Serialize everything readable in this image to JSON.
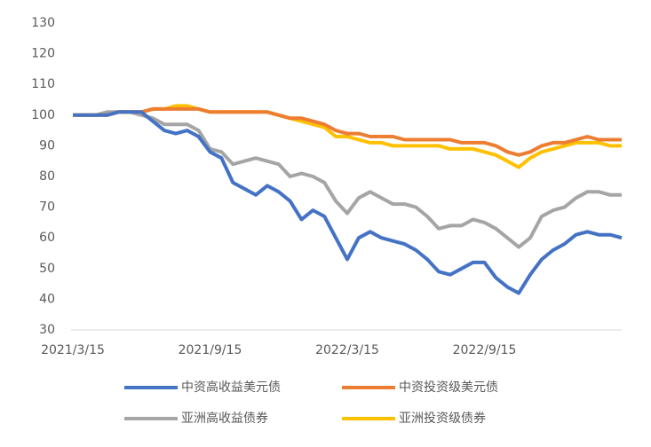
{
  "chart_data": {
    "type": "line",
    "categories": [
      "2021/3/15",
      null,
      null,
      null,
      null,
      null,
      null,
      null,
      null,
      null,
      null,
      null,
      "2021/9/15",
      null,
      null,
      null,
      null,
      null,
      null,
      null,
      null,
      null,
      null,
      null,
      "2022/3/15",
      null,
      null,
      null,
      null,
      null,
      null,
      null,
      null,
      null,
      null,
      null,
      "2022/9/15",
      null,
      null,
      null,
      null,
      null,
      null,
      null,
      null,
      null,
      null,
      null,
      null
    ],
    "ylim": [
      30,
      130
    ],
    "yticks": [
      30,
      40,
      50,
      60,
      70,
      80,
      90,
      100,
      110,
      120,
      130
    ],
    "grid": false,
    "series": [
      {
        "name": "中资高收益美元债",
        "color": "#4472c4",
        "values": [
          100,
          100,
          100,
          100,
          101,
          101,
          101,
          98,
          95,
          94,
          95,
          93,
          88,
          86,
          78,
          76,
          74,
          77,
          75,
          72,
          66,
          69,
          67,
          60,
          53,
          60,
          62,
          60,
          59,
          58,
          56,
          53,
          49,
          48,
          50,
          52,
          52,
          47,
          44,
          42,
          48,
          53,
          56,
          58,
          61,
          62,
          61,
          61,
          60
        ]
      },
      {
        "name": "中资投资级美元债",
        "color": "#ed7d31",
        "values": [
          100,
          100,
          100,
          100,
          101,
          101,
          101,
          102,
          102,
          102,
          102,
          102,
          101,
          101,
          101,
          101,
          101,
          101,
          100,
          99,
          99,
          98,
          97,
          95,
          94,
          94,
          93,
          93,
          93,
          92,
          92,
          92,
          92,
          92,
          91,
          91,
          91,
          90,
          88,
          87,
          88,
          90,
          91,
          91,
          92,
          93,
          92,
          92,
          92
        ]
      },
      {
        "name": "亚洲高收益债券",
        "color": "#a5a5a5",
        "values": [
          100,
          100,
          100,
          101,
          101,
          101,
          100,
          99,
          97,
          97,
          97,
          95,
          89,
          88,
          84,
          85,
          86,
          85,
          84,
          80,
          81,
          80,
          78,
          72,
          68,
          73,
          75,
          73,
          71,
          71,
          70,
          67,
          63,
          64,
          64,
          66,
          65,
          63,
          60,
          57,
          60,
          67,
          69,
          70,
          73,
          75,
          75,
          74,
          74
        ]
      },
      {
        "name": "亚洲投资级债券",
        "color": "#ffc000",
        "values": [
          100,
          100,
          100,
          100,
          101,
          101,
          101,
          102,
          102,
          103,
          103,
          102,
          101,
          101,
          101,
          101,
          101,
          101,
          100,
          99,
          98,
          97,
          96,
          93,
          93,
          92,
          91,
          91,
          90,
          90,
          90,
          90,
          90,
          89,
          89,
          89,
          88,
          87,
          85,
          83,
          86,
          88,
          89,
          90,
          91,
          91,
          91,
          90,
          90
        ]
      }
    ]
  }
}
